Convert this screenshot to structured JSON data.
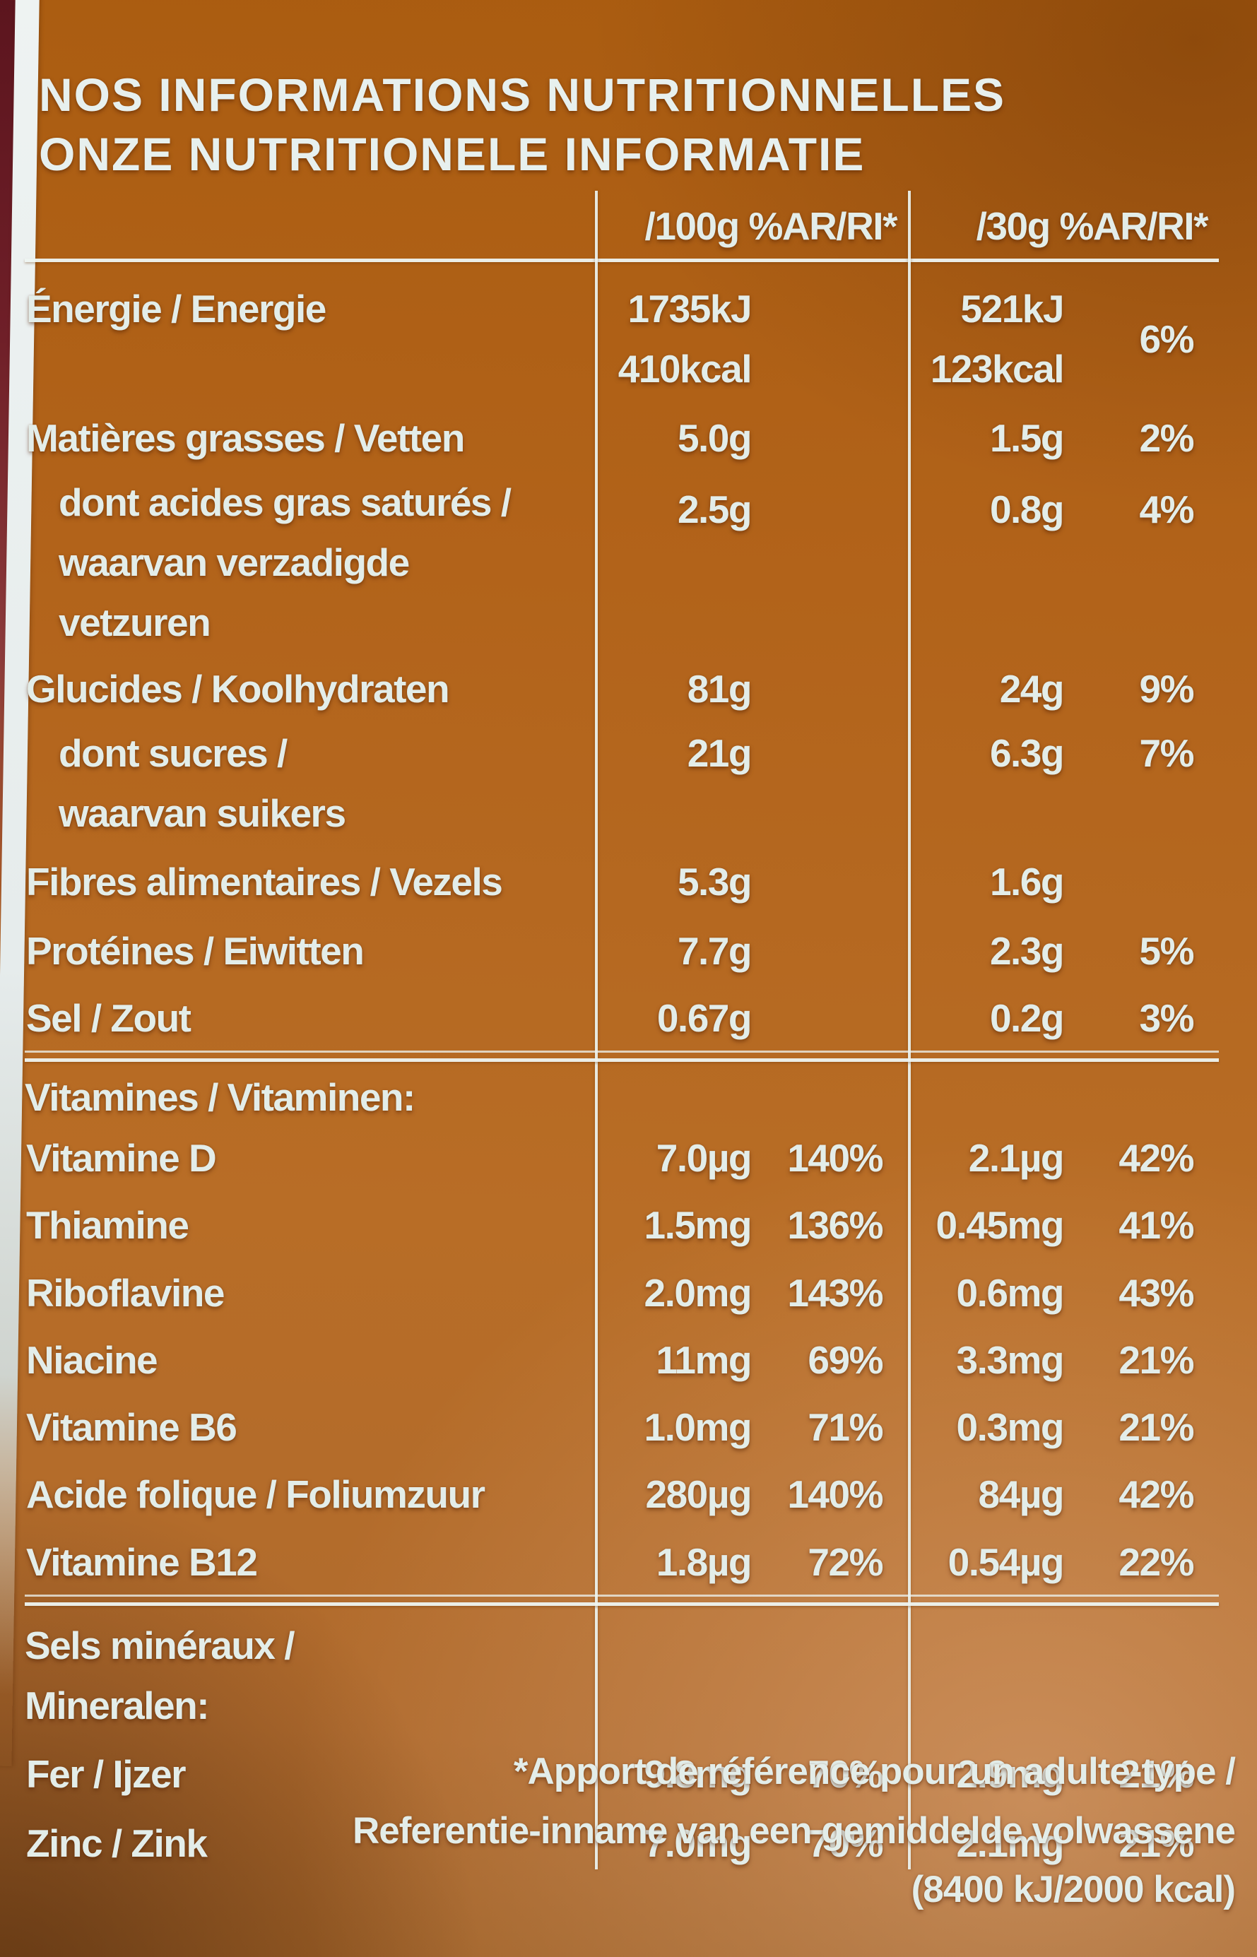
{
  "panel": {
    "title_line1": "NOS INFORMATIONS NUTRITIONNELLES",
    "title_line2": "ONZE NUTRITIONELE INFORMATIE"
  },
  "table": {
    "col_headers": {
      "per100g": "/100g %AR/RI*",
      "per30g": "/30g %AR/RI*"
    },
    "rows": [
      {
        "label": "Énergie / Energie",
        "v100": "1735kJ\n410kcal",
        "p100": "",
        "v30": "521kJ\n123kcal",
        "p30": "6%"
      },
      {
        "label": "Matières grasses / Vetten",
        "v100": "5.0g",
        "p100": "",
        "v30": "1.5g",
        "p30": "2%"
      },
      {
        "label": "dont acides gras saturés /\nwaarvan verzadigde\nvetzuren",
        "v100": "2.5g",
        "p100": "",
        "v30": "0.8g",
        "p30": "4%"
      },
      {
        "label": "Glucides / Koolhydraten",
        "v100": "81g",
        "p100": "",
        "v30": "24g",
        "p30": "9%"
      },
      {
        "label": "dont sucres /\nwaarvan suikers",
        "v100": "21g",
        "p100": "",
        "v30": "6.3g",
        "p30": "7%"
      },
      {
        "label": "Fibres alimentaires / Vezels",
        "v100": "5.3g",
        "p100": "",
        "v30": "1.6g",
        "p30": ""
      },
      {
        "label": "Protéines / Eiwitten",
        "v100": "7.7g",
        "p100": "",
        "v30": "2.3g",
        "p30": "5%"
      },
      {
        "label": "Sel / Zout",
        "v100": "0.67g",
        "p100": "",
        "v30": "0.2g",
        "p30": "3%"
      }
    ],
    "vitamins_header": "Vitamines / Vitaminen:",
    "vitamin_rows": [
      {
        "label": "Vitamine D",
        "v100": "7.0µg",
        "p100": "140%",
        "v30": "2.1µg",
        "p30": "42%"
      },
      {
        "label": "Thiamine",
        "v100": "1.5mg",
        "p100": "136%",
        "v30": "0.45mg",
        "p30": "41%"
      },
      {
        "label": "Riboflavine",
        "v100": "2.0mg",
        "p100": "143%",
        "v30": "0.6mg",
        "p30": "43%"
      },
      {
        "label": "Niacine",
        "v100": "11mg",
        "p100": "69%",
        "v30": "3.3mg",
        "p30": "21%"
      },
      {
        "label": "Vitamine B6",
        "v100": "1.0mg",
        "p100": "71%",
        "v30": "0.3mg",
        "p30": "21%"
      },
      {
        "label": "Acide folique / Foliumzuur",
        "v100": "280µg",
        "p100": "140%",
        "v30": "84µg",
        "p30": "42%"
      },
      {
        "label": "Vitamine B12",
        "v100": "1.8µg",
        "p100": "72%",
        "v30": "0.54µg",
        "p30": "22%"
      }
    ],
    "minerals_header": "Sels minéraux /\nMineralen:",
    "mineral_rows": [
      {
        "label": "Fer / Ijzer",
        "v100": "9.8mg",
        "p100": "70%",
        "v30": "2.9mg",
        "p30": "21%"
      },
      {
        "label": "Zinc / Zink",
        "v100": "7.0mg",
        "p100": "70%",
        "v30": "2.1mg",
        "p30": "21%"
      }
    ]
  },
  "footnote": {
    "line1": "*Apport de référence pour un adulte-type /",
    "line2": "Referentie-inname van een gemiddelde volwassene",
    "line3": "(8400 kJ/2000 kcal)"
  },
  "colors": {
    "background_orange": "#b4671c",
    "text_pale": "#e3ede9",
    "rule_line": "#eef4f1",
    "left_strip_red": "#5c151e",
    "box_edge_white": "#eef3f2"
  }
}
